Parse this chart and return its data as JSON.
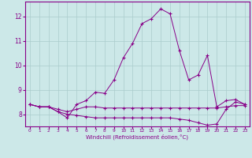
{
  "xlabel": "Windchill (Refroidissement éolien,°C)",
  "x": [
    0,
    1,
    2,
    3,
    4,
    5,
    6,
    7,
    8,
    9,
    10,
    11,
    12,
    13,
    14,
    15,
    16,
    17,
    18,
    19,
    20,
    21,
    22,
    23
  ],
  "line1": [
    8.4,
    8.3,
    8.3,
    8.1,
    7.85,
    8.4,
    8.55,
    8.9,
    8.85,
    9.4,
    10.3,
    10.9,
    11.7,
    11.9,
    12.3,
    12.1,
    10.6,
    9.4,
    9.6,
    10.4,
    8.3,
    8.55,
    8.6,
    8.4
  ],
  "line2": [
    8.4,
    8.3,
    8.3,
    8.2,
    8.1,
    8.2,
    8.3,
    8.3,
    8.25,
    8.25,
    8.25,
    8.25,
    8.25,
    8.25,
    8.25,
    8.25,
    8.25,
    8.25,
    8.25,
    8.25,
    8.25,
    8.3,
    8.35,
    8.35
  ],
  "line3": [
    8.4,
    8.3,
    8.3,
    8.1,
    8.0,
    7.95,
    7.9,
    7.85,
    7.85,
    7.85,
    7.85,
    7.85,
    7.85,
    7.85,
    7.85,
    7.85,
    7.8,
    7.75,
    7.65,
    7.55,
    7.6,
    8.2,
    8.5,
    8.4
  ],
  "ylim": [
    7.5,
    12.6
  ],
  "yticks": [
    8,
    9,
    10,
    11,
    12
  ],
  "line_color": "#880088",
  "bg_color": "#cce8e8",
  "grid_color": "#aacccc",
  "spine_color": "#880088"
}
